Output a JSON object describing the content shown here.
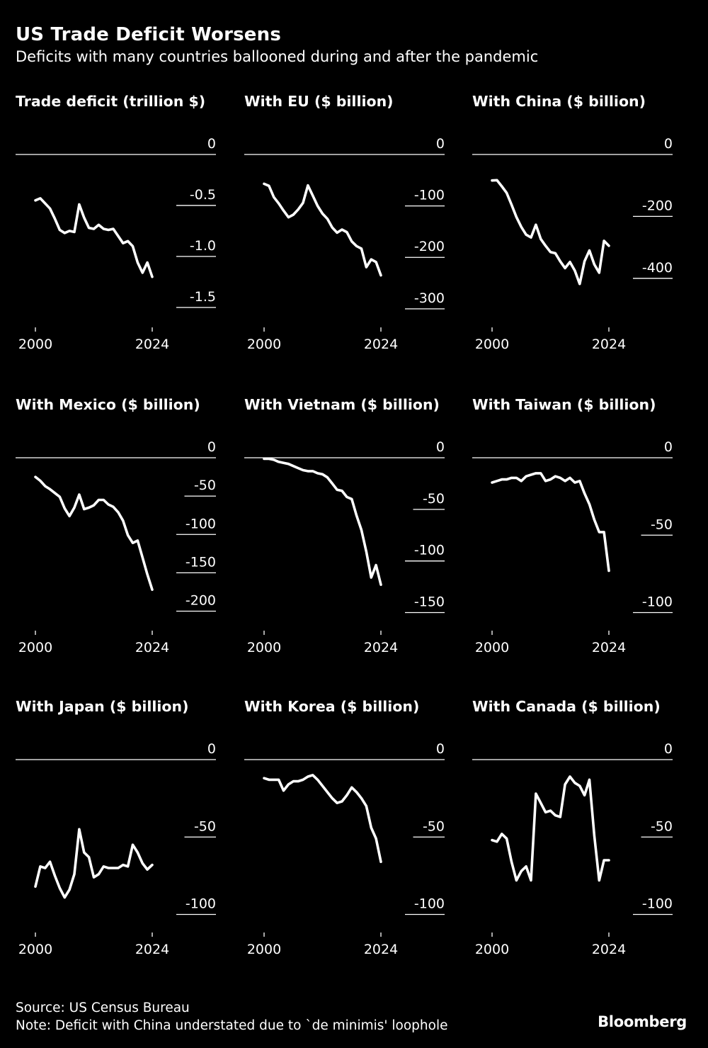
{
  "header": {
    "title": "US Trade Deficit Worsens",
    "subtitle": "Deficits with many countries ballooned during and after the pandemic"
  },
  "footer": {
    "source": "Source: US Census Bureau",
    "note": "Note: Deficit with China understated due to `de minimis' loophole",
    "logo": "Bloomberg"
  },
  "colors": {
    "background": "#000000",
    "line": "#ffffff"
  },
  "chart_data": [
    {
      "type": "line",
      "title": "Trade deficit (trillion $)",
      "x": [
        2000,
        2001,
        2002,
        2003,
        2004,
        2005,
        2006,
        2007,
        2008,
        2009,
        2010,
        2011,
        2012,
        2013,
        2014,
        2015,
        2016,
        2017,
        2018,
        2019,
        2020,
        2021,
        2022,
        2023,
        2024
      ],
      "values": [
        -0.45,
        -0.43,
        -0.48,
        -0.53,
        -0.63,
        -0.74,
        -0.77,
        -0.75,
        -0.76,
        -0.49,
        -0.62,
        -0.72,
        -0.73,
        -0.69,
        -0.73,
        -0.74,
        -0.73,
        -0.8,
        -0.87,
        -0.85,
        -0.9,
        -1.06,
        -1.16,
        -1.06,
        -1.2
      ],
      "ylim": [
        -1.64,
        0
      ],
      "yticks": [
        0,
        -0.5,
        -1.0,
        -1.5
      ],
      "ytick_labels": [
        "0",
        "-0.5",
        "-1.0",
        "-1.5"
      ],
      "xticks": [
        2000,
        2024
      ],
      "xtick_labels": [
        "2000",
        "2024"
      ]
    },
    {
      "type": "line",
      "title": "With EU ($ billion)",
      "x": [
        2000,
        2001,
        2002,
        2003,
        2004,
        2005,
        2006,
        2007,
        2008,
        2009,
        2010,
        2011,
        2012,
        2013,
        2014,
        2015,
        2016,
        2017,
        2018,
        2019,
        2020,
        2021,
        2022,
        2023,
        2024
      ],
      "values": [
        -57,
        -61,
        -83,
        -95,
        -109,
        -122,
        -117,
        -107,
        -94,
        -60,
        -80,
        -100,
        -115,
        -125,
        -142,
        -152,
        -146,
        -151,
        -169,
        -178,
        -183,
        -219,
        -204,
        -209,
        -235
      ],
      "ylim": [
        -325,
        0
      ],
      "yticks": [
        0,
        -100,
        -200,
        -300
      ],
      "ytick_labels": [
        "0",
        "-100",
        "-200",
        "-300"
      ],
      "xticks": [
        2000,
        2024
      ],
      "xtick_labels": [
        "2000",
        "2024"
      ]
    },
    {
      "type": "line",
      "title": "With China ($ billion)",
      "x": [
        2000,
        2001,
        2002,
        2003,
        2004,
        2005,
        2006,
        2007,
        2008,
        2009,
        2010,
        2011,
        2012,
        2013,
        2014,
        2015,
        2016,
        2017,
        2018,
        2019,
        2020,
        2021,
        2022,
        2023,
        2024
      ],
      "values": [
        -84,
        -83,
        -103,
        -124,
        -162,
        -202,
        -234,
        -259,
        -268,
        -227,
        -273,
        -295,
        -315,
        -319,
        -345,
        -367,
        -347,
        -375,
        -418,
        -345,
        -310,
        -355,
        -382,
        -279,
        -295
      ],
      "ylim": [
        -540,
        0
      ],
      "yticks": [
        0,
        -200,
        -400
      ],
      "ytick_labels": [
        "0",
        "-200",
        "-400"
      ],
      "xticks": [
        2000,
        2024
      ],
      "xtick_labels": [
        "2000",
        "2024"
      ]
    },
    {
      "type": "line",
      "title": "With Mexico ($ billion)",
      "x": [
        2000,
        2001,
        2002,
        2003,
        2004,
        2005,
        2006,
        2007,
        2008,
        2009,
        2010,
        2011,
        2012,
        2013,
        2014,
        2015,
        2016,
        2017,
        2018,
        2019,
        2020,
        2021,
        2022,
        2023,
        2024
      ],
      "values": [
        -25,
        -30,
        -37,
        -41,
        -46,
        -51,
        -66,
        -76,
        -65,
        -48,
        -67,
        -65,
        -62,
        -55,
        -55,
        -61,
        -64,
        -71,
        -82,
        -101,
        -111,
        -108,
        -130,
        -152,
        -172
      ],
      "ylim": [
        -218,
        0
      ],
      "yticks": [
        0,
        -50,
        -100,
        -150,
        -200
      ],
      "ytick_labels": [
        "0",
        "-50",
        "-100",
        "-150",
        "-200"
      ],
      "xticks": [
        2000,
        2024
      ],
      "xtick_labels": [
        "2000",
        "2024"
      ]
    },
    {
      "type": "line",
      "title": "With Vietnam ($ billion)",
      "x": [
        2000,
        2001,
        2002,
        2003,
        2004,
        2005,
        2006,
        2007,
        2008,
        2009,
        2010,
        2011,
        2012,
        2013,
        2014,
        2015,
        2016,
        2017,
        2018,
        2019,
        2020,
        2021,
        2022,
        2023,
        2024
      ],
      "values": [
        -1,
        -1,
        -2,
        -4,
        -5,
        -6,
        -8,
        -10,
        -12,
        -13,
        -13,
        -15,
        -16,
        -19,
        -25,
        -31,
        -32,
        -38,
        -40,
        -56,
        -70,
        -91,
        -116,
        -104,
        -123
      ],
      "ylim": [
        -162,
        0
      ],
      "yticks": [
        0,
        -50,
        -100,
        -150
      ],
      "ytick_labels": [
        "0",
        "-50",
        "-100",
        "-150"
      ],
      "xticks": [
        2000,
        2024
      ],
      "xtick_labels": [
        "2000",
        "2024"
      ]
    },
    {
      "type": "line",
      "title": "With Taiwan ($ billion)",
      "x": [
        2000,
        2001,
        2002,
        2003,
        2004,
        2005,
        2006,
        2007,
        2008,
        2009,
        2010,
        2011,
        2012,
        2013,
        2014,
        2015,
        2016,
        2017,
        2018,
        2019,
        2020,
        2021,
        2022,
        2023,
        2024
      ],
      "values": [
        -16,
        -15,
        -14,
        -14,
        -13,
        -13,
        -15,
        -12,
        -11,
        -10,
        -10,
        -15,
        -14,
        -12,
        -13,
        -15,
        -13,
        -16,
        -15,
        -23,
        -30,
        -40,
        -48,
        -48,
        -73
      ],
      "ylim": [
        -108,
        0
      ],
      "yticks": [
        0,
        -50,
        -100
      ],
      "ytick_labels": [
        "0",
        "-50",
        "-100"
      ],
      "xticks": [
        2000,
        2024
      ],
      "xtick_labels": [
        "2000",
        "2024"
      ]
    },
    {
      "type": "line",
      "title": "With Japan ($ billion)",
      "x": [
        2000,
        2001,
        2002,
        2003,
        2004,
        2005,
        2006,
        2007,
        2008,
        2009,
        2010,
        2011,
        2012,
        2013,
        2014,
        2015,
        2016,
        2017,
        2018,
        2019,
        2020,
        2021,
        2022,
        2023,
        2024
      ],
      "values": [
        -82,
        -69,
        -70,
        -66,
        -75,
        -83,
        -89,
        -84,
        -74,
        -45,
        -60,
        -63,
        -76,
        -74,
        -69,
        -70,
        -70,
        -70,
        -68,
        -69,
        -55,
        -60,
        -67,
        -71,
        -68
      ],
      "ylim": [
        -108,
        0
      ],
      "yticks": [
        0,
        -50,
        -100
      ],
      "ytick_labels": [
        "0",
        "-50",
        "-100"
      ],
      "xticks": [
        2000,
        2024
      ],
      "xtick_labels": [
        "2000",
        "2024"
      ]
    },
    {
      "type": "line",
      "title": "With Korea ($ billion)",
      "x": [
        2000,
        2001,
        2002,
        2003,
        2004,
        2005,
        2006,
        2007,
        2008,
        2009,
        2010,
        2011,
        2012,
        2013,
        2014,
        2015,
        2016,
        2017,
        2018,
        2019,
        2020,
        2021,
        2022,
        2023,
        2024
      ],
      "values": [
        -12,
        -13,
        -13,
        -13,
        -20,
        -16,
        -14,
        -14,
        -13,
        -11,
        -10,
        -13,
        -17,
        -21,
        -25,
        -28,
        -27,
        -23,
        -18,
        -21,
        -25,
        -30,
        -44,
        -51,
        -66
      ],
      "ylim": [
        -108,
        0
      ],
      "yticks": [
        0,
        -50,
        -100
      ],
      "ytick_labels": [
        "0",
        "-50",
        "-100"
      ],
      "xticks": [
        2000,
        2024
      ],
      "xtick_labels": [
        "2000",
        "2024"
      ]
    },
    {
      "type": "line",
      "title": "With Canada ($ billion)",
      "x": [
        2000,
        2001,
        2002,
        2003,
        2004,
        2005,
        2006,
        2007,
        2008,
        2009,
        2010,
        2011,
        2012,
        2013,
        2014,
        2015,
        2016,
        2017,
        2018,
        2019,
        2020,
        2021,
        2022,
        2023,
        2024
      ],
      "values": [
        -52,
        -53,
        -48,
        -51,
        -66,
        -78,
        -72,
        -69,
        -78,
        -22,
        -28,
        -34,
        -33,
        -36,
        -37,
        -16,
        -11,
        -15,
        -17,
        -23,
        -13,
        -49,
        -78,
        -65,
        -65
      ],
      "ylim": [
        -108,
        0
      ],
      "yticks": [
        0,
        -50,
        -100
      ],
      "ytick_labels": [
        "0",
        "-50",
        "-100"
      ],
      "xticks": [
        2000,
        2024
      ],
      "xtick_labels": [
        "2000",
        "2024"
      ]
    }
  ]
}
